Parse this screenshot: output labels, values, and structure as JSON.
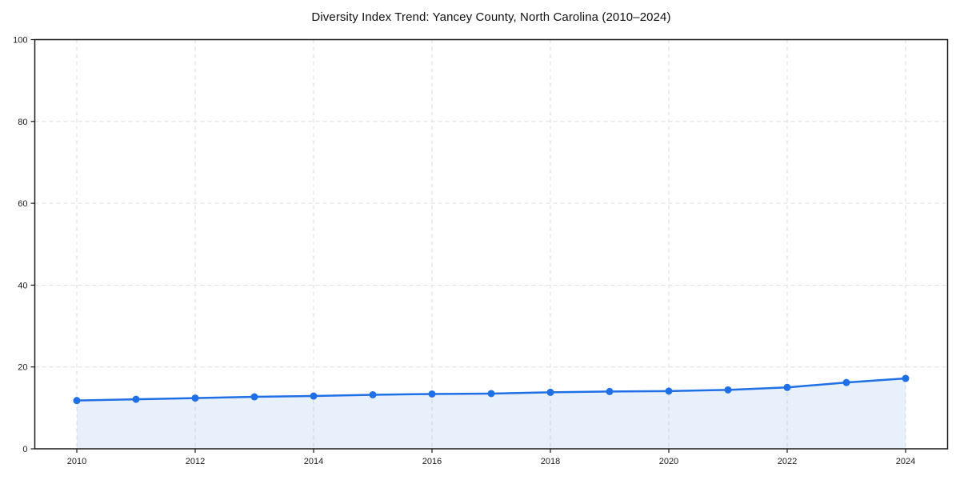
{
  "chart_data": {
    "type": "line",
    "title": "Diversity Index Trend: Yancey County, North Carolina (2010–2024)",
    "series": [
      {
        "name": "Diversity Index",
        "x": [
          2010,
          2011,
          2012,
          2013,
          2014,
          2015,
          2016,
          2017,
          2018,
          2019,
          2020,
          2021,
          2022,
          2023,
          2024
        ],
        "values": [
          11.8,
          12.1,
          12.4,
          12.7,
          12.9,
          13.2,
          13.4,
          13.5,
          13.8,
          14.0,
          14.1,
          14.4,
          15.0,
          16.2,
          17.2
        ]
      }
    ],
    "xlabel": "",
    "ylabel": "",
    "ylim": [
      0,
      100
    ],
    "yticks": [
      0,
      20,
      40,
      60,
      80,
      100
    ],
    "xticks": [
      2010,
      2012,
      2014,
      2016,
      2018,
      2020,
      2022,
      2024
    ],
    "grid": true,
    "grid_style": "dashed",
    "legend": "none",
    "colors": {
      "line": "#1f6fe6",
      "marker": "#1f6fe6",
      "area_fill": "rgba(31,111,230,0.10)",
      "grid": "#dedede",
      "spine": "#1a1a1a",
      "tick_text": "#1a1a1a",
      "background": "#ffffff"
    }
  }
}
